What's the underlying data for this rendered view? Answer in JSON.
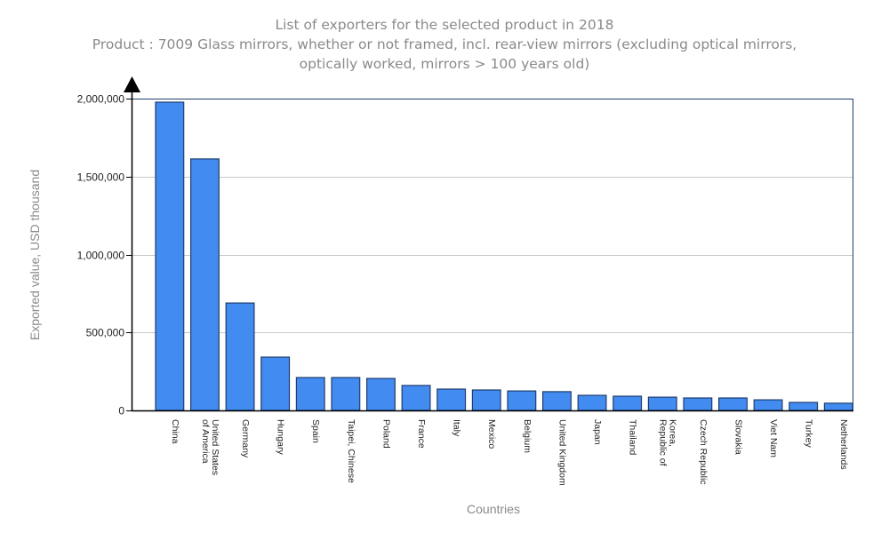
{
  "chart_data": {
    "type": "bar",
    "title": "List of exporters for the selected product in 2018",
    "subtitle_lines": [
      "Product : 7009 Glass mirrors, whether or not framed, incl. rear-view mirrors (excluding optical mirrors,",
      "optically worked, mirrors > 100 years old)"
    ],
    "xlabel": "Countries",
    "ylabel": "Exported value, USD thousand",
    "ylim": [
      0,
      2000000
    ],
    "yticks": [
      0,
      500000,
      1000000,
      1500000,
      2000000
    ],
    "ytick_labels": [
      "0",
      "500,000",
      "1,000,000",
      "1,500,000",
      "2,000,000"
    ],
    "grid": true,
    "bar_color": "#428bf0",
    "bar_edge_color": "#1f3e6e",
    "categories": [
      [
        "China"
      ],
      [
        "United States",
        "of America"
      ],
      [
        "Germany"
      ],
      [
        "Hungary"
      ],
      [
        "Spain"
      ],
      [
        "Taipei, Chinese"
      ],
      [
        "Poland"
      ],
      [
        "France"
      ],
      [
        "Italy"
      ],
      [
        "Mexico"
      ],
      [
        "Belgium"
      ],
      [
        "United Kingdom"
      ],
      [
        "Japan"
      ],
      [
        "Thailand"
      ],
      [
        "Korea,",
        "Republic of"
      ],
      [
        "Czech Republic"
      ],
      [
        "Slovakia"
      ],
      [
        "Viet Nam"
      ],
      [
        "Turkey"
      ],
      [
        "Netherlands"
      ]
    ],
    "values": [
      1977000,
      1613000,
      689000,
      342000,
      211000,
      211000,
      205000,
      160000,
      137000,
      131000,
      125000,
      120000,
      97000,
      91000,
      85000,
      80000,
      80000,
      68000,
      51000,
      46000
    ]
  }
}
